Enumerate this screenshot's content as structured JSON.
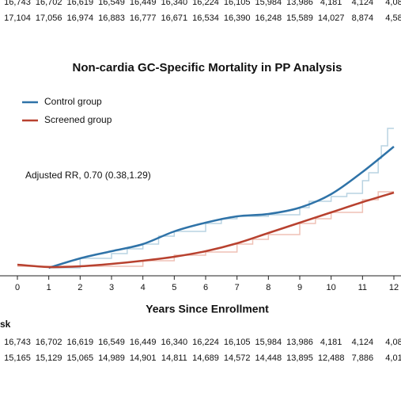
{
  "chart_data": {
    "type": "line",
    "title": "Non-cardia GC-Specific Mortality in PP Analysis",
    "annotation": "Adjusted RR, 0.70 (0.38,1.29)",
    "x_label": "Years Since Enrollment",
    "xlim": [
      0,
      12
    ],
    "xticks": [
      0,
      1,
      2,
      3,
      4,
      5,
      6,
      7,
      8,
      9,
      10,
      11,
      12
    ],
    "ylim": [
      0,
      10
    ],
    "series": [
      {
        "name": "Control group",
        "color": "#2f73a8",
        "step_color": "#b9d3e2",
        "x": [
          1,
          2,
          3,
          4,
          5,
          6,
          7,
          8,
          9,
          10,
          11,
          12
        ],
        "values": [
          0.5,
          1.1,
          1.55,
          2.0,
          2.8,
          3.35,
          3.75,
          3.9,
          4.3,
          5.15,
          6.55,
          8.15
        ],
        "step_x": [
          1,
          2,
          3,
          3.5,
          4,
          4.5,
          5,
          6,
          6.5,
          7,
          8,
          9,
          9.3,
          10,
          10.5,
          11,
          11.2,
          11.5,
          11.6,
          11.8,
          12
        ],
        "step_values": [
          0.5,
          1.1,
          1.4,
          1.7,
          2.0,
          2.5,
          2.8,
          3.3,
          3.6,
          3.75,
          3.85,
          4.3,
          4.7,
          5.0,
          5.2,
          6.0,
          6.5,
          7.4,
          8.2,
          9.3,
          9.3
        ]
      },
      {
        "name": "Screened group",
        "color": "#b8412f",
        "step_color": "#efc1b6",
        "x": [
          0,
          1,
          2,
          3,
          4,
          5,
          6,
          7,
          8,
          9,
          10,
          11,
          12
        ],
        "values": [
          0.7,
          0.55,
          0.6,
          0.75,
          0.95,
          1.2,
          1.55,
          2.05,
          2.7,
          3.35,
          4.0,
          4.65,
          5.25
        ],
        "step_x": [
          0,
          4,
          5,
          6,
          7,
          7.5,
          8,
          9,
          9.5,
          10,
          11,
          11.5,
          12
        ],
        "step_values": [
          0.6,
          0.95,
          1.3,
          1.5,
          2.0,
          2.3,
          2.6,
          3.3,
          3.6,
          4.0,
          4.8,
          5.3,
          5.3
        ]
      }
    ],
    "risk_table_label": "sk",
    "risk_table_top": [
      [
        "16,743",
        "16,702",
        "16,619",
        "16,549",
        "16,449",
        "16,340",
        "16,224",
        "16,105",
        "15,984",
        "13,986",
        "4,181",
        "4,124",
        "4,08"
      ],
      [
        "17,104",
        "17,056",
        "16,974",
        "16,883",
        "16,777",
        "16,671",
        "16,534",
        "16,390",
        "16,248",
        "15,589",
        "14,027",
        "8,874",
        "4,58"
      ]
    ],
    "risk_table_bottom": [
      [
        "16,743",
        "16,702",
        "16,619",
        "16,549",
        "16,449",
        "16,340",
        "16,224",
        "16,105",
        "15,984",
        "13,986",
        "4,181",
        "4,124",
        "4,08"
      ],
      [
        "15,165",
        "15,129",
        "15,065",
        "14,989",
        "14,901",
        "14,811",
        "14,689",
        "14,572",
        "14,448",
        "13,895",
        "12,488",
        "7,886",
        "4,01"
      ]
    ]
  }
}
